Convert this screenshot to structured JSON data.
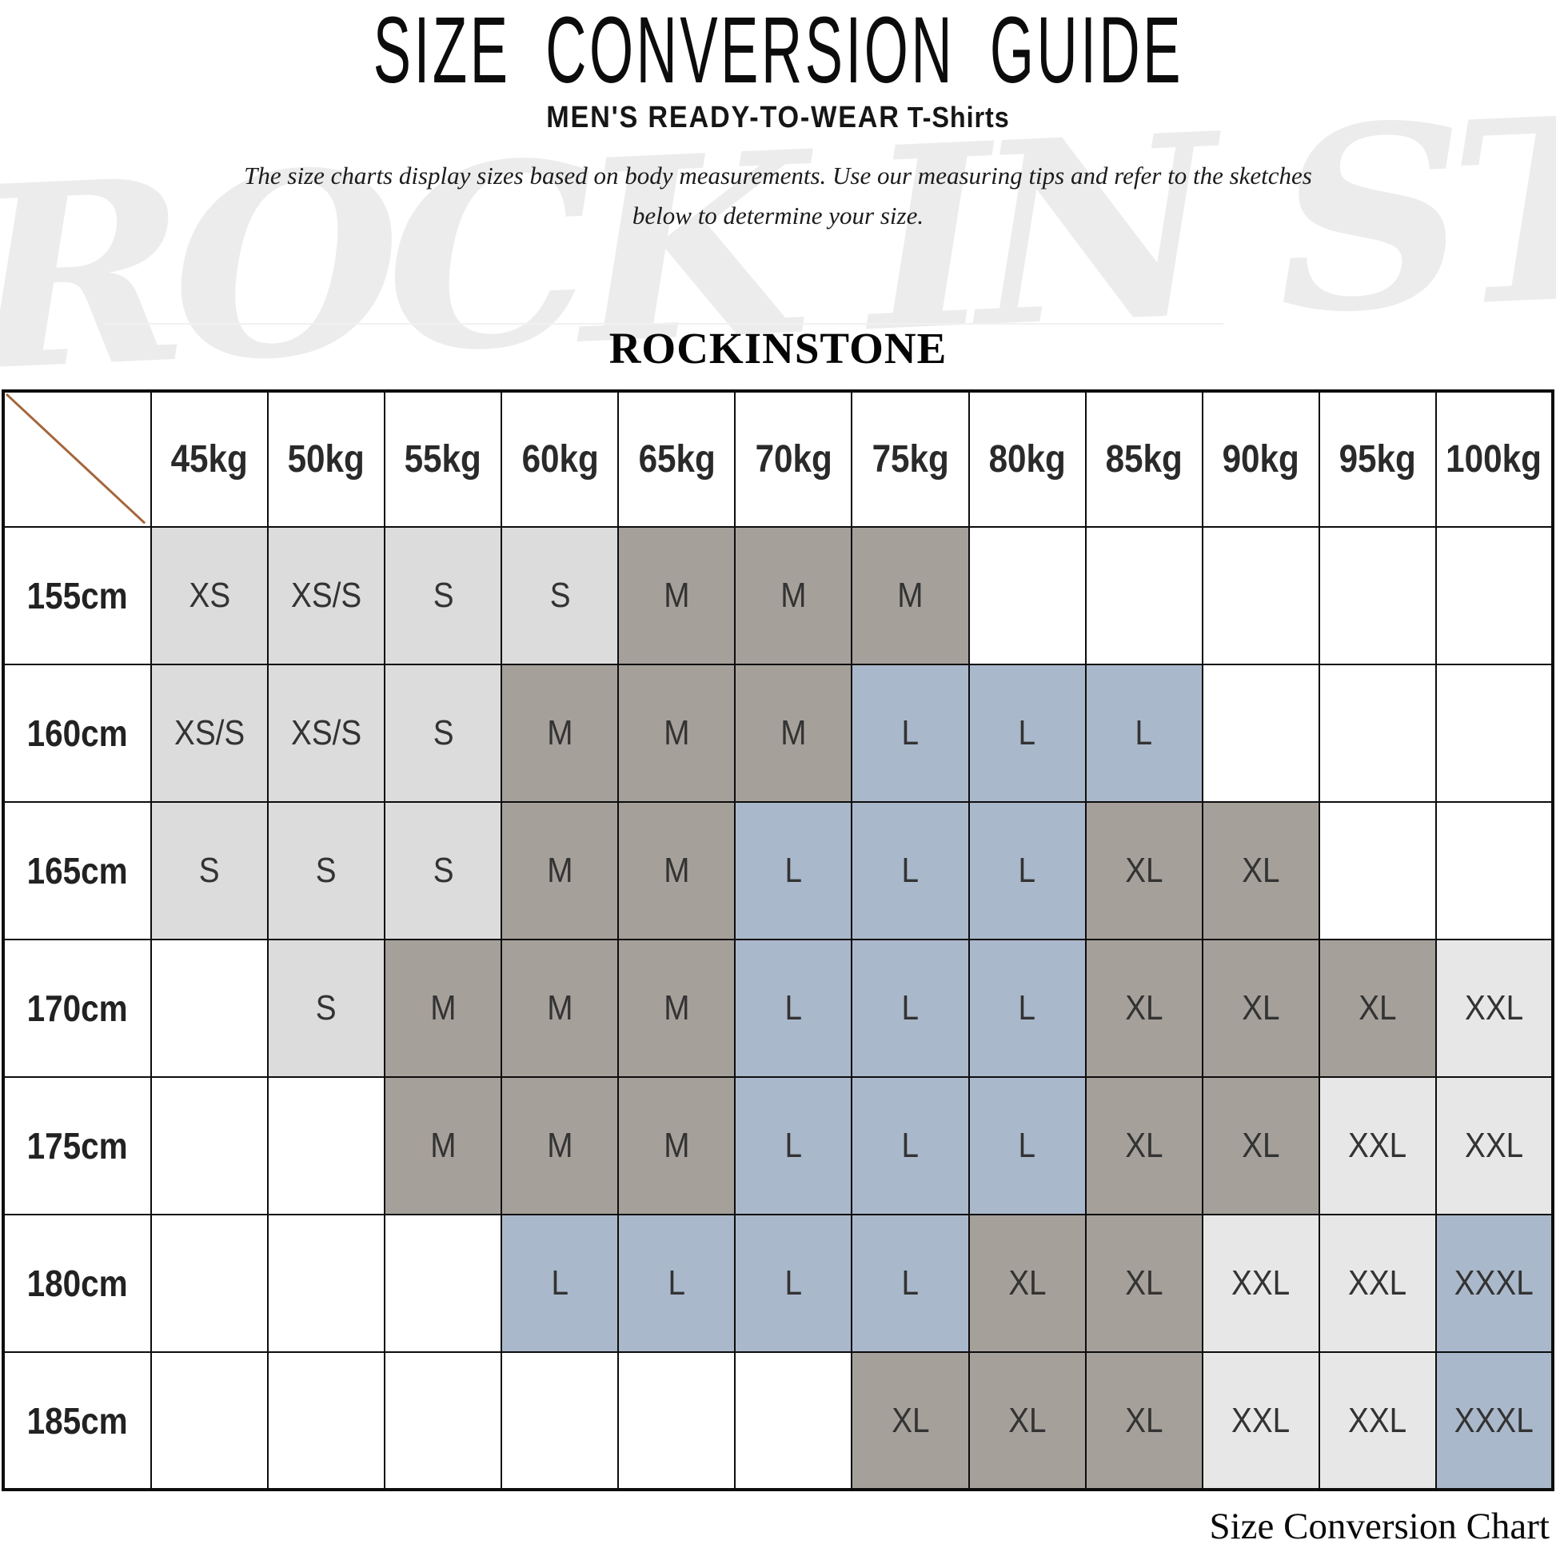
{
  "page": {
    "title": "SIZE CONVERSION GUIDE",
    "subtitle_main": "MEN'S READY-TO-WEAR",
    "subtitle_secondary": "T-Shirts",
    "description_line1": "The size charts display sizes based on body measurements. Use our measuring tips and refer to the sketches",
    "description_line2": "below to determine your size.",
    "brand": "ROCKINSTONE",
    "watermark": "ROCK IN STONE",
    "caption": "Size Conversion Chart"
  },
  "colors": {
    "light_gray": "#dcdcdc",
    "pale_gray": "#e7e7e7",
    "taupe": "#a6a09b",
    "blue_gray": "#aab8cb",
    "diagonal_line": "#a4653c",
    "border": "#0d0d0d"
  },
  "table": {
    "weight_headers": [
      "45kg",
      "50kg",
      "55kg",
      "60kg",
      "65kg",
      "70kg",
      "75kg",
      "80kg",
      "85kg",
      "90kg",
      "95kg",
      "100kg"
    ],
    "rows": [
      {
        "height": "155cm",
        "cells": [
          {
            "size": "XS",
            "bg": "light_gray"
          },
          {
            "size": "XS/S",
            "bg": "light_gray"
          },
          {
            "size": "S",
            "bg": "light_gray"
          },
          {
            "size": "S",
            "bg": "light_gray"
          },
          {
            "size": "M",
            "bg": "taupe"
          },
          {
            "size": "M",
            "bg": "taupe"
          },
          {
            "size": "M",
            "bg": "taupe"
          },
          {
            "size": "",
            "bg": ""
          },
          {
            "size": "",
            "bg": ""
          },
          {
            "size": "",
            "bg": ""
          },
          {
            "size": "",
            "bg": ""
          },
          {
            "size": "",
            "bg": ""
          }
        ]
      },
      {
        "height": "160cm",
        "cells": [
          {
            "size": "XS/S",
            "bg": "light_gray"
          },
          {
            "size": "XS/S",
            "bg": "light_gray"
          },
          {
            "size": "S",
            "bg": "light_gray"
          },
          {
            "size": "M",
            "bg": "taupe"
          },
          {
            "size": "M",
            "bg": "taupe"
          },
          {
            "size": "M",
            "bg": "taupe"
          },
          {
            "size": "L",
            "bg": "blue_gray"
          },
          {
            "size": "L",
            "bg": "blue_gray"
          },
          {
            "size": "L",
            "bg": "blue_gray"
          },
          {
            "size": "",
            "bg": ""
          },
          {
            "size": "",
            "bg": ""
          },
          {
            "size": "",
            "bg": ""
          }
        ]
      },
      {
        "height": "165cm",
        "cells": [
          {
            "size": "S",
            "bg": "light_gray"
          },
          {
            "size": "S",
            "bg": "light_gray"
          },
          {
            "size": "S",
            "bg": "light_gray"
          },
          {
            "size": "M",
            "bg": "taupe"
          },
          {
            "size": "M",
            "bg": "taupe"
          },
          {
            "size": "L",
            "bg": "blue_gray"
          },
          {
            "size": "L",
            "bg": "blue_gray"
          },
          {
            "size": "L",
            "bg": "blue_gray"
          },
          {
            "size": "XL",
            "bg": "taupe"
          },
          {
            "size": "XL",
            "bg": "taupe"
          },
          {
            "size": "",
            "bg": ""
          },
          {
            "size": "",
            "bg": ""
          }
        ]
      },
      {
        "height": "170cm",
        "cells": [
          {
            "size": "",
            "bg": ""
          },
          {
            "size": "S",
            "bg": "light_gray"
          },
          {
            "size": "M",
            "bg": "taupe"
          },
          {
            "size": "M",
            "bg": "taupe"
          },
          {
            "size": "M",
            "bg": "taupe"
          },
          {
            "size": "L",
            "bg": "blue_gray"
          },
          {
            "size": "L",
            "bg": "blue_gray"
          },
          {
            "size": "L",
            "bg": "blue_gray"
          },
          {
            "size": "XL",
            "bg": "taupe"
          },
          {
            "size": "XL",
            "bg": "taupe"
          },
          {
            "size": "XL",
            "bg": "taupe"
          },
          {
            "size": "XXL",
            "bg": "pale_gray"
          }
        ]
      },
      {
        "height": "175cm",
        "cells": [
          {
            "size": "",
            "bg": ""
          },
          {
            "size": "",
            "bg": ""
          },
          {
            "size": "M",
            "bg": "taupe"
          },
          {
            "size": "M",
            "bg": "taupe"
          },
          {
            "size": "M",
            "bg": "taupe"
          },
          {
            "size": "L",
            "bg": "blue_gray"
          },
          {
            "size": "L",
            "bg": "blue_gray"
          },
          {
            "size": "L",
            "bg": "blue_gray"
          },
          {
            "size": "XL",
            "bg": "taupe"
          },
          {
            "size": "XL",
            "bg": "taupe"
          },
          {
            "size": "XXL",
            "bg": "pale_gray"
          },
          {
            "size": "XXL",
            "bg": "pale_gray"
          }
        ]
      },
      {
        "height": "180cm",
        "cells": [
          {
            "size": "",
            "bg": ""
          },
          {
            "size": "",
            "bg": ""
          },
          {
            "size": "",
            "bg": ""
          },
          {
            "size": "L",
            "bg": "blue_gray"
          },
          {
            "size": "L",
            "bg": "blue_gray"
          },
          {
            "size": "L",
            "bg": "blue_gray"
          },
          {
            "size": "L",
            "bg": "blue_gray"
          },
          {
            "size": "XL",
            "bg": "taupe"
          },
          {
            "size": "XL",
            "bg": "taupe"
          },
          {
            "size": "XXL",
            "bg": "pale_gray"
          },
          {
            "size": "XXL",
            "bg": "pale_gray"
          },
          {
            "size": "XXXL",
            "bg": "blue_gray"
          }
        ]
      },
      {
        "height": "185cm",
        "cells": [
          {
            "size": "",
            "bg": ""
          },
          {
            "size": "",
            "bg": ""
          },
          {
            "size": "",
            "bg": ""
          },
          {
            "size": "",
            "bg": ""
          },
          {
            "size": "",
            "bg": ""
          },
          {
            "size": "",
            "bg": ""
          },
          {
            "size": "XL",
            "bg": "taupe"
          },
          {
            "size": "XL",
            "bg": "taupe"
          },
          {
            "size": "XL",
            "bg": "taupe"
          },
          {
            "size": "XXL",
            "bg": "pale_gray"
          },
          {
            "size": "XXL",
            "bg": "pale_gray"
          },
          {
            "size": "XXXL",
            "bg": "blue_gray"
          }
        ]
      }
    ]
  }
}
